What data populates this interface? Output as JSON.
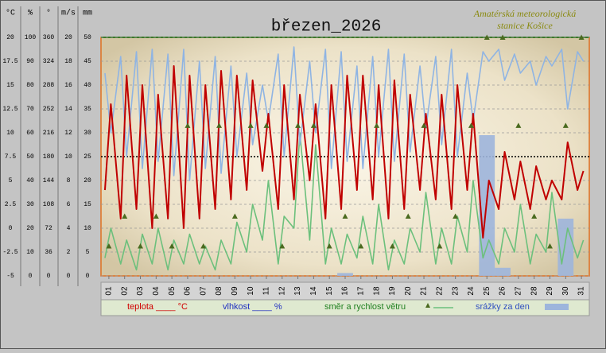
{
  "chart_data": {
    "type": "line",
    "title": "březen_2026",
    "annotation": [
      "Amatérská meteorologická",
      "stanice Košice"
    ],
    "xlim": [
      1,
      32
    ],
    "xticks": [
      {
        "value": 1.5,
        "label": "01"
      },
      {
        "value": 2.5,
        "label": "02"
      },
      {
        "value": 3.5,
        "label": "03"
      },
      {
        "value": 4.5,
        "label": "04"
      },
      {
        "value": 5.5,
        "label": "05"
      },
      {
        "value": 6.5,
        "label": "06"
      },
      {
        "value": 7.5,
        "label": "07"
      },
      {
        "value": 8.5,
        "label": "08"
      },
      {
        "value": 9.5,
        "label": "09"
      },
      {
        "value": 10.5,
        "label": "10"
      },
      {
        "value": 11.5,
        "label": "11"
      },
      {
        "value": 12.5,
        "label": "12"
      },
      {
        "value": 13.5,
        "label": "13"
      },
      {
        "value": 14.5,
        "label": "14"
      },
      {
        "value": 15.5,
        "label": "15"
      },
      {
        "value": 16.5,
        "label": "16"
      },
      {
        "value": 17.5,
        "label": "17"
      },
      {
        "value": 18.5,
        "label": "18"
      },
      {
        "value": 19.5,
        "label": "19"
      },
      {
        "value": 20.5,
        "label": "20"
      },
      {
        "value": 21.5,
        "label": "21"
      },
      {
        "value": 22.5,
        "label": "22"
      },
      {
        "value": 23.5,
        "label": "23"
      },
      {
        "value": 24.5,
        "label": "24"
      },
      {
        "value": 25.5,
        "label": "25"
      },
      {
        "value": 26.5,
        "label": "26"
      },
      {
        "value": 27.5,
        "label": "27"
      },
      {
        "value": 28.5,
        "label": "28"
      },
      {
        "value": 29.5,
        "label": "29"
      },
      {
        "value": 30.5,
        "label": "30"
      },
      {
        "value": 31.5,
        "label": "31"
      }
    ],
    "y_axes": [
      {
        "label": "°C",
        "lim": [
          -5,
          20
        ],
        "ticks": [
          -5,
          -2.5,
          0,
          2.5,
          5,
          7.5,
          10,
          12.5,
          15,
          17.5,
          20
        ]
      },
      {
        "label": "%",
        "lim": [
          0,
          100
        ],
        "ticks": [
          0,
          10,
          20,
          30,
          40,
          50,
          60,
          70,
          80,
          90,
          100
        ]
      },
      {
        "label": "°",
        "lim": [
          0,
          360
        ],
        "ticks": [
          0,
          36,
          72,
          108,
          144,
          180,
          216,
          252,
          288,
          324,
          360
        ]
      },
      {
        "label": "m/s",
        "lim": [
          0,
          20
        ],
        "ticks": [
          0,
          2,
          4,
          6,
          8,
          10,
          12,
          14,
          16,
          18,
          20
        ]
      },
      {
        "label": "mm",
        "lim": [
          0,
          50
        ],
        "ticks": [
          0,
          5,
          10,
          15,
          20,
          25,
          30,
          35,
          40,
          45,
          50
        ]
      }
    ],
    "grid": true,
    "x": [
      1.25,
      1.625,
      2.25,
      2.625,
      3.25,
      3.625,
      4.25,
      4.625,
      5.25,
      5.625,
      6.25,
      6.625,
      7.25,
      7.625,
      8.25,
      8.625,
      9.25,
      9.625,
      10.25,
      10.625,
      11.25,
      11.625,
      12.25,
      12.625,
      13.25,
      13.625,
      14.25,
      14.625,
      15.25,
      15.625,
      16.25,
      16.625,
      17.25,
      17.625,
      18.25,
      18.625,
      19.25,
      19.625,
      20.25,
      20.625,
      21.25,
      21.625,
      22.25,
      22.625,
      23.25,
      23.625,
      24.25,
      24.625,
      25.25,
      25.625,
      26.25,
      26.625,
      27.25,
      27.625,
      28.25,
      28.625,
      29.25,
      29.625,
      30.25,
      30.625,
      31.25,
      31.625
    ],
    "series": [
      {
        "name": "teplota ____ °C",
        "color": "#c00000",
        "axis": 0,
        "values": [
          4,
          13,
          1,
          16,
          2,
          15,
          0,
          14,
          1,
          17,
          0,
          16,
          1,
          15,
          2,
          16.5,
          3,
          16,
          4,
          15.5,
          6,
          12,
          2,
          15,
          3,
          14,
          5,
          13,
          1,
          15,
          2,
          16,
          4,
          16,
          3,
          15,
          1,
          15.5,
          2,
          14,
          4,
          12,
          3,
          14,
          2,
          15,
          4,
          12,
          -1,
          5,
          2,
          8,
          3,
          7,
          2,
          6.5,
          3,
          5,
          3,
          9,
          4,
          6
        ]
      },
      {
        "name": "vlhkost ____ %",
        "color": "#8fb4e3",
        "axis": 1,
        "values": [
          85,
          60,
          92,
          50,
          94,
          45,
          95,
          48,
          93,
          42,
          95,
          40,
          90,
          45,
          92,
          43,
          88,
          50,
          85,
          55,
          80,
          65,
          93,
          50,
          96,
          55,
          90,
          60,
          95,
          45,
          94,
          48,
          88,
          45,
          92,
          50,
          95,
          48,
          93,
          52,
          88,
          62,
          92,
          55,
          95,
          50,
          85,
          65,
          94,
          90,
          95,
          82,
          93,
          85,
          90,
          80,
          92,
          88,
          95,
          70,
          94,
          90
        ]
      },
      {
        "name": "směr a rychlost větru",
        "color": "#6cc07c",
        "axis": 3,
        "values": [
          1.5,
          4,
          1,
          3,
          0.5,
          3.5,
          1,
          4,
          0.5,
          3,
          1,
          3.5,
          1,
          2.5,
          0.5,
          3,
          1,
          4.5,
          2,
          6,
          3,
          8,
          1,
          5,
          4,
          12,
          3,
          11,
          1,
          4,
          1,
          3.5,
          1.5,
          5,
          1,
          6,
          0.5,
          3,
          1,
          4,
          2,
          7,
          1,
          4,
          1,
          5,
          2,
          8,
          1.5,
          3,
          1,
          4,
          2,
          6,
          1,
          3.5,
          2,
          7,
          1,
          4,
          1.5,
          3
        ]
      }
    ],
    "wind_direction": {
      "color": "#4a6a1f",
      "axis": 2,
      "x": [
        1.5,
        2.5,
        3.5,
        4.5,
        5.5,
        6.5,
        7.5,
        8.5,
        9.5,
        10.5,
        11.5,
        12.5,
        13.5,
        14.5,
        15.5,
        16.5,
        17.5,
        18.5,
        19.5,
        20.5,
        21.5,
        22.5,
        23.5,
        24.5,
        25.5,
        26.5,
        27.5,
        28.5,
        29.5,
        30.5,
        31.5
      ],
      "values": [
        45,
        90,
        45,
        90,
        45,
        227,
        45,
        227,
        90,
        227,
        227,
        45,
        227,
        227,
        45,
        90,
        45,
        227,
        45,
        90,
        227,
        45,
        90,
        227,
        360,
        360,
        227,
        90,
        45,
        227,
        360
      ]
    },
    "precipitation": {
      "name": "srážky za den",
      "color": "#9db5dc",
      "axis": 4,
      "values": [
        0,
        0,
        0,
        0,
        0,
        0,
        0,
        0,
        0,
        0,
        0,
        0,
        0,
        0,
        0,
        0.6,
        0,
        0,
        0,
        0,
        0,
        0,
        0,
        0,
        29.5,
        1.7,
        0,
        0,
        0,
        12,
        0
      ]
    }
  }
}
